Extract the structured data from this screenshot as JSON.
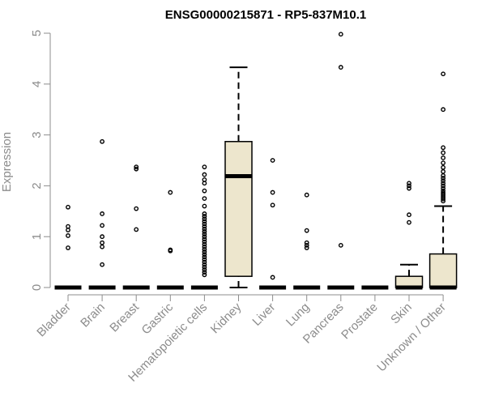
{
  "chart_data": {
    "type": "box",
    "title": "ENSG00000215871 - RP5-837M10.1",
    "xlabel": "",
    "ylabel": "Expression",
    "ylim": [
      0,
      5
    ],
    "yticks": [
      0,
      1,
      2,
      3,
      4,
      5
    ],
    "grid": false,
    "legend": "none",
    "colors": {
      "box_fill": "#ede6cd",
      "line": "#000000",
      "axis": "#8c8c8c",
      "tick_label": "#8c8c8c"
    },
    "categories": [
      "Bladder",
      "Brain",
      "Breast",
      "Gastric",
      "Hematopoietic cells",
      "Kidney",
      "Liver",
      "Lung",
      "Pancreas",
      "Prostate",
      "Skin",
      "Unknown / Other"
    ],
    "boxes": [
      {
        "name": "Bladder",
        "min": 0,
        "q1": 0,
        "median": 0,
        "q3": 0,
        "max": 0,
        "outliers": [
          0.78,
          1.02,
          1.13,
          1.2,
          1.58
        ]
      },
      {
        "name": "Brain",
        "min": 0,
        "q1": 0,
        "median": 0,
        "q3": 0,
        "max": 0,
        "outliers": [
          0.45,
          0.8,
          0.88,
          1.0,
          1.22,
          1.45,
          2.87
        ]
      },
      {
        "name": "Breast",
        "min": 0,
        "q1": 0,
        "median": 0,
        "q3": 0,
        "max": 0,
        "outliers": [
          1.14,
          1.55,
          2.33,
          2.37
        ]
      },
      {
        "name": "Gastric",
        "min": 0,
        "q1": 0,
        "median": 0,
        "q3": 0,
        "max": 0,
        "outliers": [
          0.72,
          0.74,
          1.87
        ]
      },
      {
        "name": "Hematopoietic cells",
        "min": 0,
        "q1": 0,
        "median": 0,
        "q3": 0,
        "max": 0,
        "outliers": [
          0.25,
          0.3,
          0.35,
          0.4,
          0.45,
          0.5,
          0.55,
          0.6,
          0.65,
          0.7,
          0.75,
          0.8,
          0.85,
          0.9,
          0.95,
          1.0,
          1.05,
          1.1,
          1.15,
          1.2,
          1.25,
          1.3,
          1.35,
          1.4,
          1.45,
          1.6,
          1.75,
          1.9,
          2.05,
          2.12,
          2.22,
          2.37
        ]
      },
      {
        "name": "Kidney",
        "min": 0,
        "q1": 0.22,
        "median": 2.19,
        "q3": 2.87,
        "max": 4.33,
        "outliers": []
      },
      {
        "name": "Liver",
        "min": 0,
        "q1": 0,
        "median": 0,
        "q3": 0,
        "max": 0,
        "outliers": [
          0.2,
          1.62,
          1.87,
          2.5
        ]
      },
      {
        "name": "Lung",
        "min": 0,
        "q1": 0,
        "median": 0,
        "q3": 0,
        "max": 0,
        "outliers": [
          0.78,
          0.83,
          0.88,
          1.12,
          1.82
        ]
      },
      {
        "name": "Pancreas",
        "min": 0,
        "q1": 0,
        "median": 0,
        "q3": 0,
        "max": 0,
        "outliers": [
          0.83,
          4.33,
          4.98
        ]
      },
      {
        "name": "Prostate",
        "min": 0,
        "q1": 0,
        "median": 0,
        "q3": 0,
        "max": 0,
        "outliers": []
      },
      {
        "name": "Skin",
        "min": 0,
        "q1": 0,
        "median": 0,
        "q3": 0.22,
        "max": 0.45,
        "outliers": [
          1.28,
          1.43,
          1.95,
          2.0,
          2.05
        ]
      },
      {
        "name": "Unknown / Other",
        "min": 0,
        "q1": 0,
        "median": 0,
        "q3": 0.66,
        "max": 1.6,
        "outliers": [
          1.7,
          1.74,
          1.78,
          1.82,
          1.86,
          1.9,
          1.95,
          2.0,
          2.05,
          2.1,
          2.15,
          2.2,
          2.28,
          2.36,
          2.45,
          2.55,
          2.65,
          2.75,
          3.5,
          4.2
        ]
      }
    ]
  }
}
